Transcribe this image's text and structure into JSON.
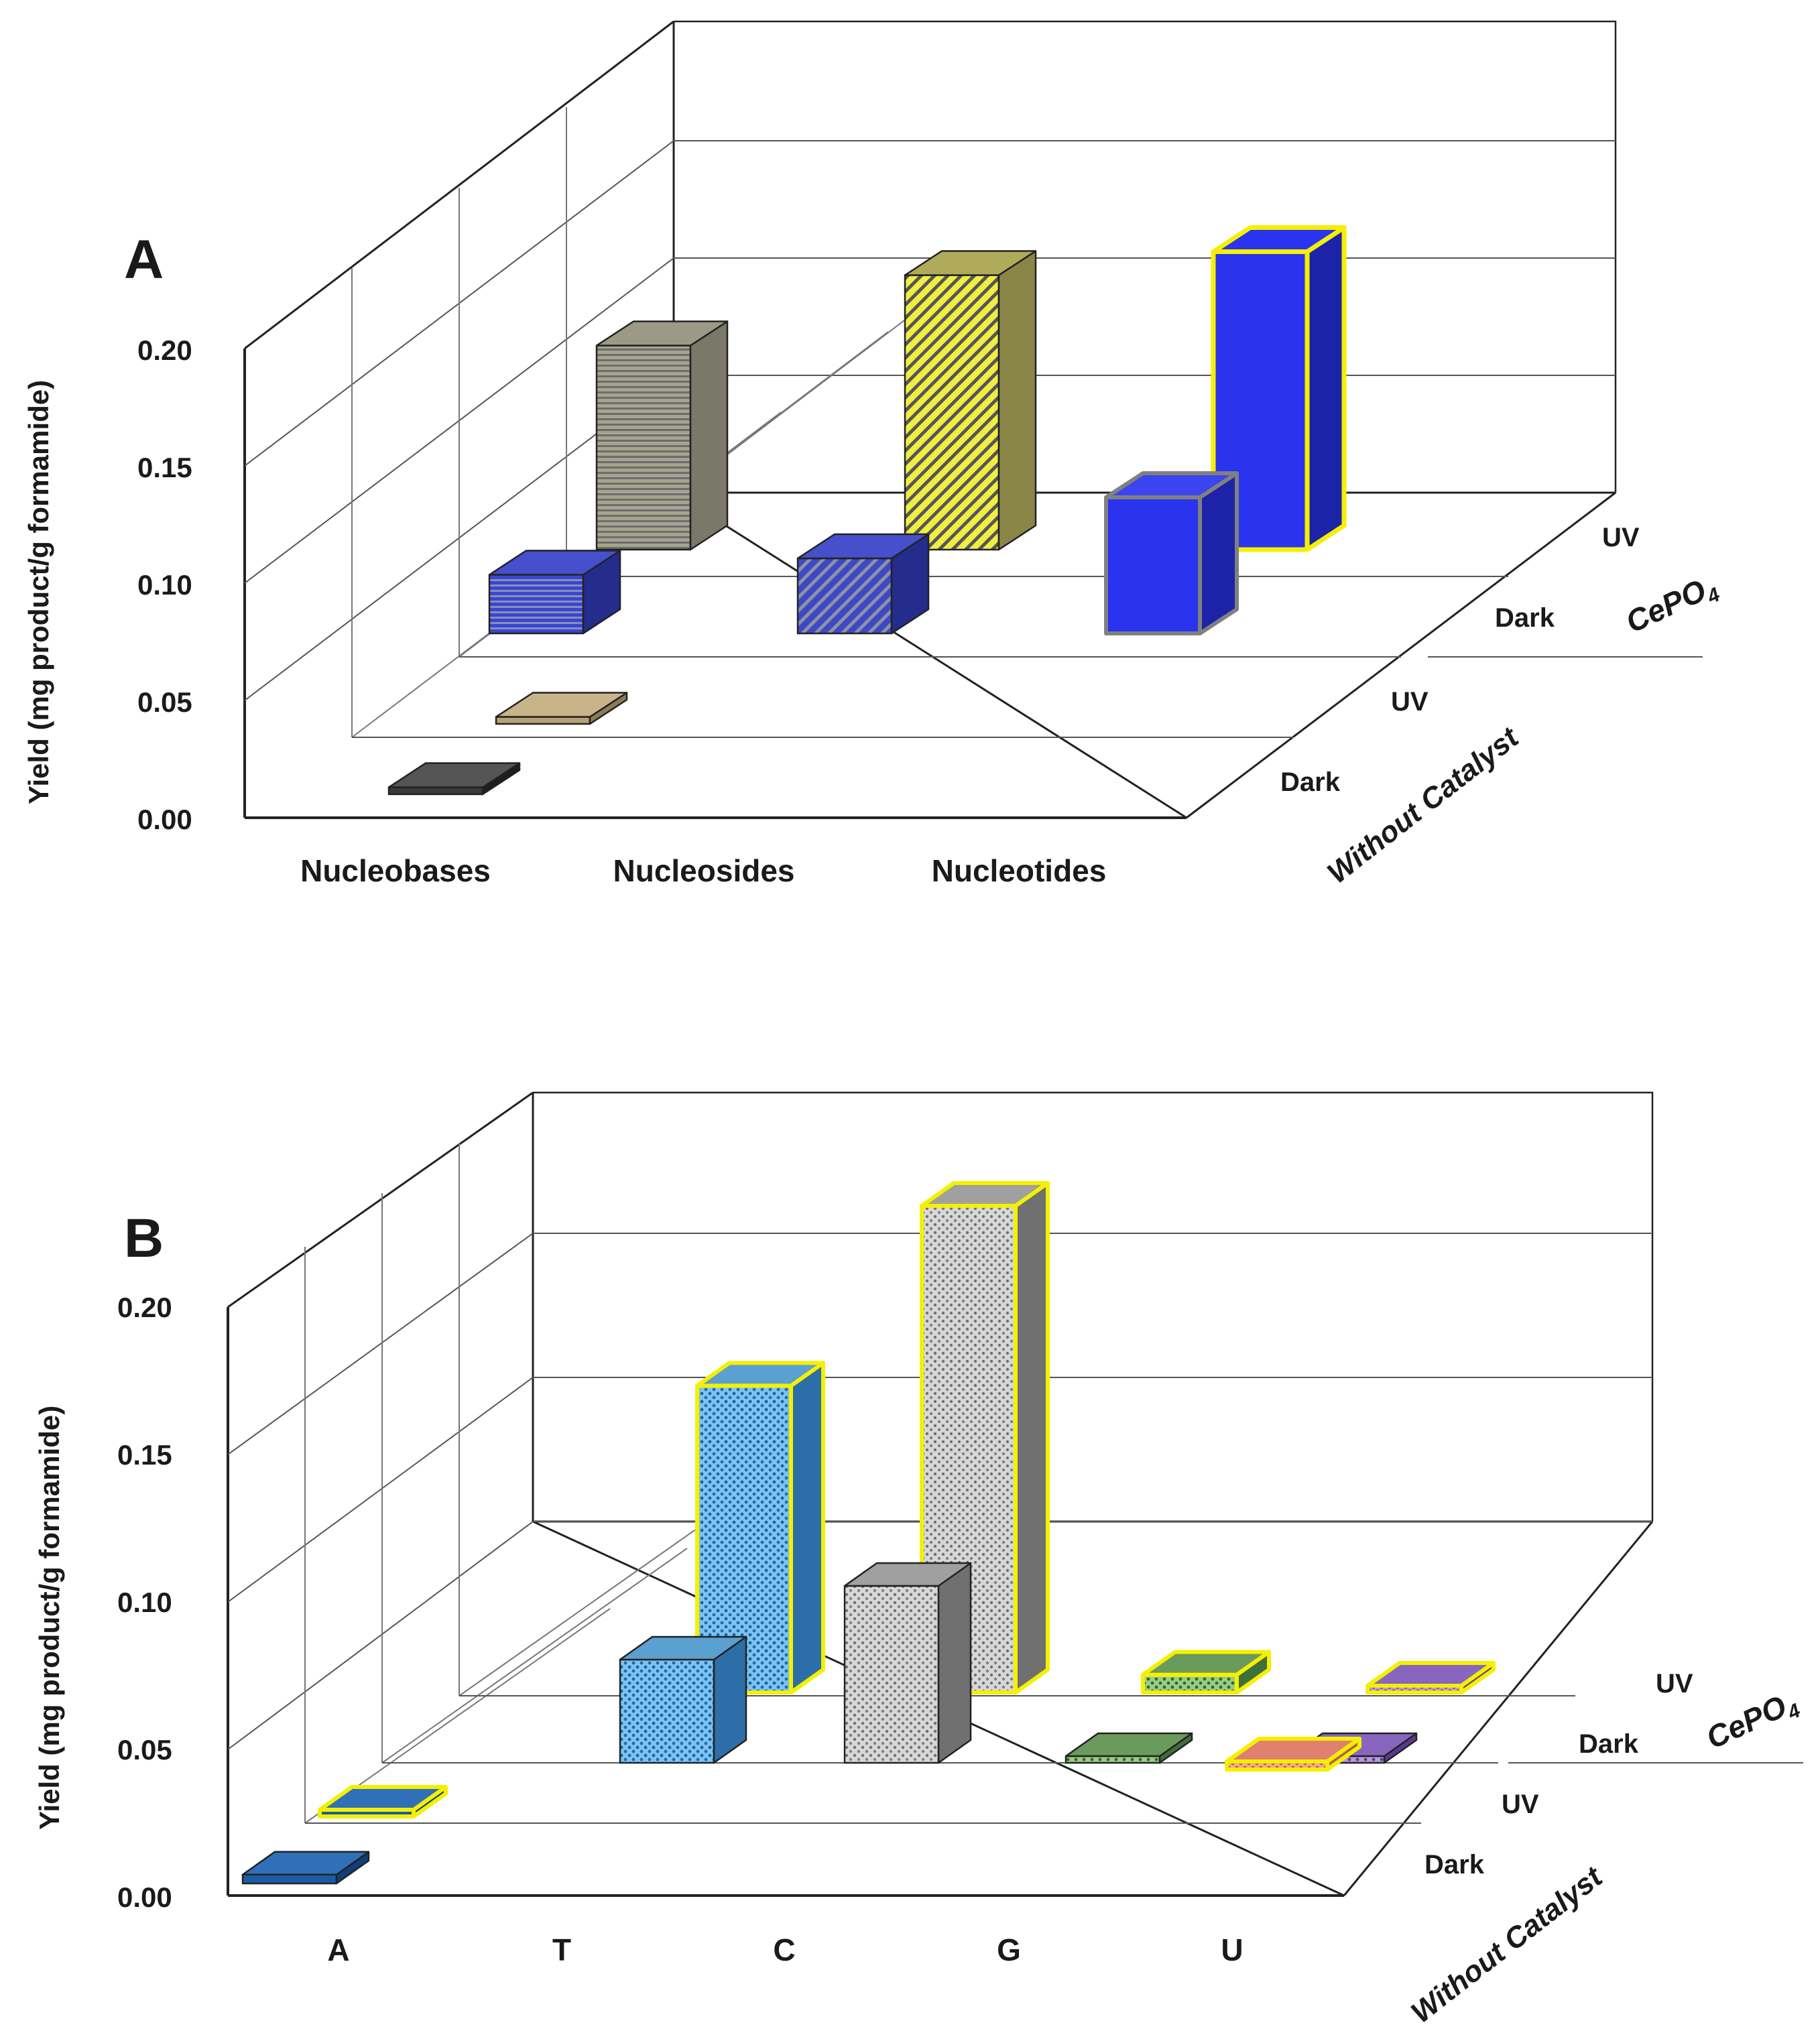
{
  "chart_data": [
    {
      "panel": "A",
      "type": "bar",
      "subtype": "3d-bar",
      "ylabel": "Yield (mg product/g formamide)",
      "ylim": [
        0,
        0.2
      ],
      "yticks": [
        "0.00",
        "0.05",
        "0.10",
        "0.15",
        "0.20"
      ],
      "categories": [
        "Nucleobases",
        "Nucleosides",
        "Nucleotides"
      ],
      "group_labels": {
        "without_catalyst": "Without Catalyst",
        "cepo4": "CePO",
        "cepo4_sub": "4"
      },
      "series": [
        {
          "name": "Without Catalyst - Dark",
          "row_label": "Dark",
          "values": [
            0.003,
            0,
            0
          ]
        },
        {
          "name": "Without Catalyst - UV",
          "row_label": "UV",
          "values": [
            0.003,
            0,
            0
          ]
        },
        {
          "name": "CePO4 - Dark",
          "row_label": "Dark",
          "values": [
            0.025,
            0.032,
            0.058
          ]
        },
        {
          "name": "CePO4 - UV",
          "row_label": "UV",
          "values": [
            0.087,
            0.117,
            0.127
          ]
        }
      ],
      "colors": {
        "cat": [
          [
            "#2b2b2b",
            "#b8a275",
            "#3340c8",
            "#9c9a86"
          ],
          [
            "#555555",
            "#555555",
            "#3f4cc4",
            "#dede3a"
          ],
          [
            "#555555",
            "#555555",
            "#2a33ee",
            "#2a33ee"
          ]
        ]
      }
    },
    {
      "panel": "B",
      "type": "bar",
      "subtype": "3d-bar",
      "ylabel": "Yield (mg product/g formamide)",
      "ylim": [
        0,
        0.2
      ],
      "yticks": [
        "0.00",
        "0.05",
        "0.10",
        "0.15",
        "0.20"
      ],
      "categories": [
        "A",
        "T",
        "C",
        "G",
        "U"
      ],
      "group_labels": {
        "without_catalyst": "Without Catalyst",
        "cepo4": "CePO",
        "cepo4_sub": "4"
      },
      "series": [
        {
          "name": "Without Catalyst - Dark",
          "row_label": "Dark",
          "values": [
            0.003,
            0,
            0,
            0,
            0
          ]
        },
        {
          "name": "Without Catalyst - UV",
          "row_label": "UV",
          "values": [
            0.001,
            0,
            0,
            0,
            0
          ]
        },
        {
          "name": "CePO4 - Dark",
          "row_label": "Dark",
          "values": [
            0,
            0.035,
            0.06,
            0.002,
            0.002
          ]
        },
        {
          "name": "CePO4 - UV",
          "row_label": "UV",
          "values": [
            0,
            0.104,
            0.165,
            0.006,
            0.001
          ]
        }
      ],
      "colors": {
        "cat": [
          "#1a5ca8",
          "#64b0e0",
          "#c8c8c8",
          "#7fb070",
          "#e89080",
          "#9070c0"
        ]
      }
    }
  ]
}
